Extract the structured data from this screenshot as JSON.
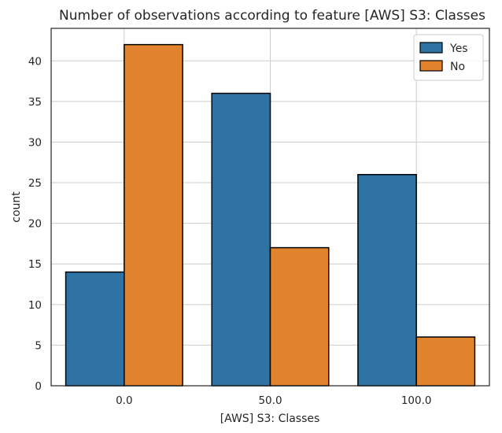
{
  "chart_data": {
    "type": "bar",
    "title": "Number of observations according to feature [AWS] S3: Classes",
    "xlabel": "[AWS] S3: Classes",
    "ylabel": "count",
    "categories": [
      "0.0",
      "50.0",
      "100.0"
    ],
    "series": [
      {
        "name": "Yes",
        "values": [
          14,
          36,
          26
        ],
        "color": "#2f72a4"
      },
      {
        "name": "No",
        "values": [
          42,
          17,
          6
        ],
        "color": "#e1822d"
      }
    ],
    "ylim": [
      0,
      44
    ],
    "yticks": [
      0,
      5,
      10,
      15,
      20,
      25,
      30,
      35,
      40
    ],
    "grid": true,
    "legend_position": "top-right"
  }
}
